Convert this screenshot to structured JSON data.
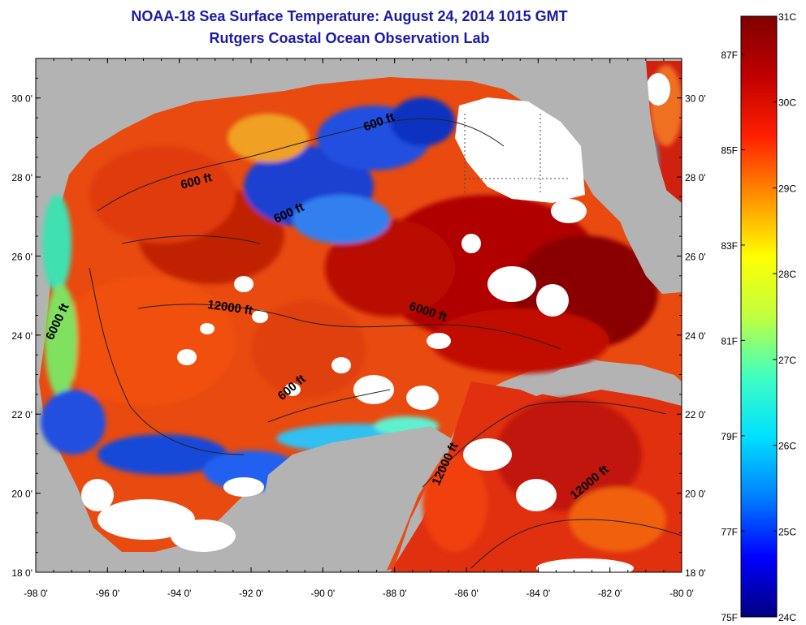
{
  "title": {
    "line1": "NOAA-18 Sea Surface Temperature:  August 24, 2014 1015 GMT",
    "line2": "Rutgers Coastal Ocean Observation Lab"
  },
  "map": {
    "lon_range": [
      -98,
      -80
    ],
    "lat_range": [
      18,
      31
    ],
    "x_ticks": [
      {
        "lon": -98,
        "label": "-98 0'"
      },
      {
        "lon": -96,
        "label": "-96 0'"
      },
      {
        "lon": -94,
        "label": "-94 0'"
      },
      {
        "lon": -92,
        "label": "-92 0'"
      },
      {
        "lon": -90,
        "label": "-90 0'"
      },
      {
        "lon": -88,
        "label": "-88 0'"
      },
      {
        "lon": -86,
        "label": "-86 0'"
      },
      {
        "lon": -84,
        "label": "-84 0'"
      },
      {
        "lon": -82,
        "label": "-82 0'"
      },
      {
        "lon": -80,
        "label": "-80 0'"
      }
    ],
    "y_ticks": [
      {
        "lat": 18,
        "label": "18 0'"
      },
      {
        "lat": 20,
        "label": "20 0'"
      },
      {
        "lat": 22,
        "label": "22 0'"
      },
      {
        "lat": 24,
        "label": "24 0'"
      },
      {
        "lat": 26,
        "label": "26 0'"
      },
      {
        "lat": 28,
        "label": "28 0'"
      },
      {
        "lat": 30,
        "label": "30 0'"
      }
    ],
    "contour_labels": [
      {
        "text": "600 ft",
        "lon": -93.5,
        "lat": 27.8,
        "angle": -15
      },
      {
        "text": "600 ft",
        "lon": -90.9,
        "lat": 27.0,
        "angle": -25
      },
      {
        "text": "600 ft",
        "lon": -88.4,
        "lat": 29.3,
        "angle": -20
      },
      {
        "text": "12000 ft",
        "lon": -92.6,
        "lat": 24.6,
        "angle": 8
      },
      {
        "text": "6000 ft",
        "lon": -97.3,
        "lat": 24.3,
        "angle": -65
      },
      {
        "text": "6000 ft",
        "lon": -87.1,
        "lat": 24.5,
        "angle": 18
      },
      {
        "text": "600 ft",
        "lon": -90.8,
        "lat": 22.6,
        "angle": -40
      },
      {
        "text": "12000 ft",
        "lon": -86.5,
        "lat": 20.7,
        "angle": -65
      },
      {
        "text": "12000 ft",
        "lon": -82.5,
        "lat": 20.2,
        "angle": -40
      }
    ]
  },
  "colorbar": {
    "min_c": 24,
    "max_c": 31,
    "colors": [
      "#000080",
      "#0000ff",
      "#0080ff",
      "#00e0ff",
      "#40ffc0",
      "#c0ff40",
      "#ffff00",
      "#ff9000",
      "#ff2000",
      "#c00000",
      "#800000"
    ],
    "celsius_labels": [
      {
        "value": 24,
        "label": "24C"
      },
      {
        "value": 25,
        "label": "25C"
      },
      {
        "value": 26,
        "label": "26C"
      },
      {
        "value": 27,
        "label": "27C"
      },
      {
        "value": 28,
        "label": "28C"
      },
      {
        "value": 29,
        "label": "29C"
      },
      {
        "value": 30,
        "label": "30C"
      },
      {
        "value": 31,
        "label": "31C"
      }
    ],
    "fahrenheit_labels": [
      {
        "value": 75,
        "label": "75F"
      },
      {
        "value": 77,
        "label": "77F"
      },
      {
        "value": 79,
        "label": "79F"
      },
      {
        "value": 81,
        "label": "81F"
      },
      {
        "value": 83,
        "label": "83F"
      },
      {
        "value": 85,
        "label": "85F"
      },
      {
        "value": 87,
        "label": "87F"
      }
    ]
  },
  "colors": {
    "land": "#b3b3b3",
    "cloud": "#ffffff",
    "title": "#1a1aa6"
  }
}
